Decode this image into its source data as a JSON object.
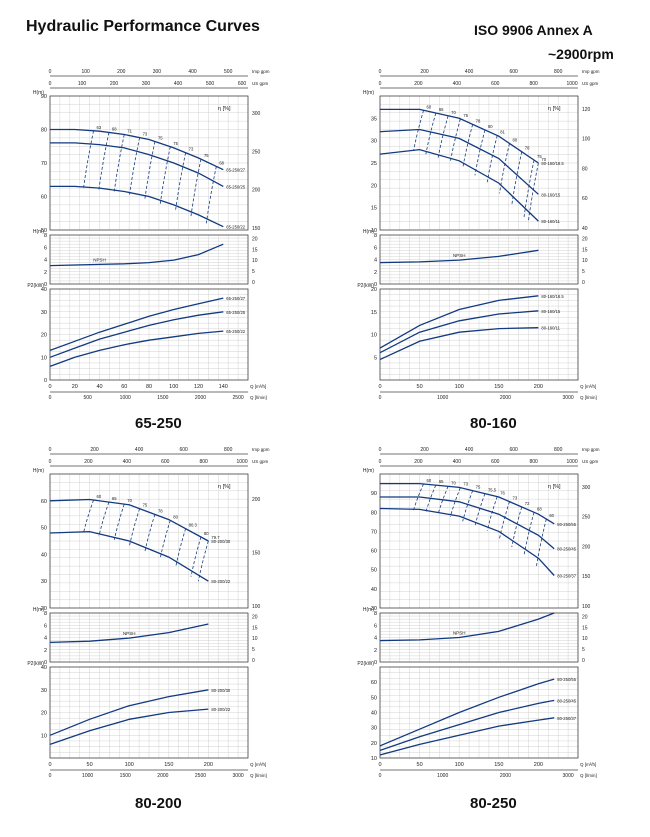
{
  "header": {
    "title": "Hydraulic Performance Curves",
    "standard": "ISO 9906   Annex A",
    "speed": "~2900rpm"
  },
  "colors": {
    "curve": "#123a80",
    "grid": "#c8c8c8",
    "frame": "#444444",
    "text": "#222222"
  },
  "chart_data": [
    {
      "type": "line",
      "model": "65-250",
      "axis_labels": {
        "h": "H(m)",
        "npsh": "H(m)",
        "p": "P2(kW)",
        "q_m3h": "Q [m³/h]",
        "q_lmin": "Q [l/min]",
        "imp": "Imp gpm",
        "us": "US gpm"
      },
      "top_impgpm_ticks": [
        "0",
        "100",
        "200",
        "300",
        "400",
        "500"
      ],
      "top_usgpm_ticks": [
        "0",
        "100",
        "200",
        "300",
        "400",
        "500",
        "600"
      ],
      "head": {
        "ylim": [
          50,
          90
        ],
        "ticks": [
          "50",
          "60",
          "70",
          "80",
          "90"
        ],
        "ft_ticks": [
          "150",
          "200",
          "250",
          "300"
        ],
        "series": [
          {
            "name": "65-250/27",
            "x": [
              0,
              20,
              40,
              60,
              80,
              100,
              120,
              140
            ],
            "y": [
              80,
              80,
              79.5,
              78.5,
              77,
              74.5,
              71.5,
              68
            ]
          },
          {
            "name": "65-250/25",
            "x": [
              0,
              20,
              40,
              60,
              80,
              100,
              120,
              140
            ],
            "y": [
              76,
              76,
              75.5,
              74.5,
              72.5,
              70,
              67,
              63
            ]
          },
          {
            "name": "65-250/22",
            "x": [
              0,
              20,
              40,
              60,
              80,
              100,
              120,
              140
            ],
            "y": [
              63,
              63,
              62.5,
              61.5,
              60,
              57.5,
              54.5,
              51
            ]
          }
        ],
        "eff_label": "η [%]",
        "eff_values": [
          "63",
          "68",
          "71",
          "73",
          "75",
          "75",
          "73",
          "75",
          "68"
        ]
      },
      "npsh": {
        "ylim": [
          0,
          8
        ],
        "ticks": [
          "0",
          "2",
          "4",
          "6",
          "8"
        ],
        "ft_ticks": [
          "0",
          "5",
          "10",
          "15",
          "20"
        ],
        "label": "NPSH",
        "x": [
          0,
          20,
          40,
          60,
          80,
          100,
          120,
          140
        ],
        "y": [
          3,
          3.1,
          3.2,
          3.3,
          3.5,
          3.9,
          4.8,
          6.5
        ]
      },
      "power": {
        "ylim": [
          0,
          40
        ],
        "ticks": [
          "0",
          "10",
          "20",
          "30",
          "40"
        ],
        "series": [
          {
            "name": "65-250/27",
            "x": [
              0,
              20,
              40,
              60,
              80,
              100,
              120,
              140
            ],
            "y": [
              13,
              17,
              21,
              24.5,
              28,
              31,
              33.5,
              36
            ]
          },
          {
            "name": "65-250/25",
            "x": [
              0,
              20,
              40,
              60,
              80,
              100,
              120,
              140
            ],
            "y": [
              10,
              14,
              18,
              21,
              24,
              26.5,
              28.5,
              30
            ]
          },
          {
            "name": "65-250/22",
            "x": [
              0,
              20,
              40,
              60,
              80,
              100,
              120,
              140
            ],
            "y": [
              6,
              10,
              13,
              15.5,
              17.5,
              19,
              20.5,
              21.5
            ]
          }
        ]
      },
      "xlim": [
        0,
        160
      ],
      "x_ticks": [
        "0",
        "20",
        "40",
        "60",
        "80",
        "100",
        "120",
        "140"
      ],
      "lmin_ticks": [
        "0",
        "500",
        "1000",
        "1500",
        "2000",
        "2500"
      ]
    },
    {
      "type": "line",
      "model": "80-160",
      "axis_labels": {
        "h": "H(m)",
        "npsh": "H(m)",
        "p": "P2(kW)",
        "q_m3h": "Q [m³/h]",
        "q_lmin": "Q [l/min]",
        "imp": "Imp gpm",
        "us": "US gpm"
      },
      "top_impgpm_ticks": [
        "0",
        "200",
        "400",
        "600",
        "800"
      ],
      "top_usgpm_ticks": [
        "0",
        "200",
        "400",
        "600",
        "800",
        "1000"
      ],
      "head": {
        "ylim": [
          10,
          40
        ],
        "ticks": [
          "10",
          "15",
          "20",
          "25",
          "30",
          "35"
        ],
        "ft_ticks": [
          "40",
          "60",
          "80",
          "100",
          "120"
        ],
        "series": [
          {
            "name": "80-160/18.5",
            "x": [
              0,
              50,
              100,
              150,
              200
            ],
            "y": [
              37,
              37,
              35,
              31,
              25
            ]
          },
          {
            "name": "80-160/15",
            "x": [
              0,
              50,
              100,
              150,
              200
            ],
            "y": [
              32,
              32.5,
              30.5,
              26,
              18
            ]
          },
          {
            "name": "80-160/11",
            "x": [
              0,
              50,
              100,
              150,
              200
            ],
            "y": [
              27,
              28,
              25.5,
              20.5,
              12
            ]
          }
        ],
        "eff_label": "η [%]",
        "eff_values": [
          "60",
          "65",
          "70",
          "75",
          "78",
          "80",
          "81",
          "80",
          "78",
          "75",
          "70"
        ]
      },
      "npsh": {
        "ylim": [
          0,
          8
        ],
        "ticks": [
          "0",
          "2",
          "4",
          "6",
          "8"
        ],
        "ft_ticks": [
          "0",
          "5",
          "10",
          "15",
          "20"
        ],
        "label": "NPSH",
        "x": [
          0,
          50,
          100,
          150,
          200
        ],
        "y": [
          3.5,
          3.6,
          3.9,
          4.5,
          5.5
        ]
      },
      "power": {
        "ylim": [
          0,
          20
        ],
        "ticks": [
          "5",
          "10",
          "15",
          "20"
        ],
        "series": [
          {
            "name": "80-160/18.5",
            "x": [
              0,
              50,
              100,
              150,
              200
            ],
            "y": [
              7,
              12,
              15.5,
              17.5,
              18.5
            ]
          },
          {
            "name": "80-160/15",
            "x": [
              0,
              50,
              100,
              150,
              200
            ],
            "y": [
              6,
              10.5,
              13,
              14.5,
              15.2
            ]
          },
          {
            "name": "80-160/11",
            "x": [
              0,
              50,
              100,
              150,
              200
            ],
            "y": [
              4.5,
              8.5,
              10.5,
              11.3,
              11.5
            ]
          }
        ]
      },
      "xlim": [
        0,
        250
      ],
      "x_ticks": [
        "0",
        "50",
        "100",
        "150",
        "200"
      ],
      "lmin_ticks": [
        "0",
        "1000",
        "2000",
        "3000"
      ]
    },
    {
      "type": "line",
      "model": "80-200",
      "axis_labels": {
        "h": "H(m)",
        "npsh": "H(m)",
        "p": "P2(kW)",
        "q_m3h": "Q [m³/h]",
        "q_lmin": "Q [l/min]",
        "imp": "Imp gpm",
        "us": "US gpm"
      },
      "top_impgpm_ticks": [
        "0",
        "200",
        "400",
        "600",
        "800"
      ],
      "top_usgpm_ticks": [
        "0",
        "200",
        "400",
        "600",
        "800",
        "1000"
      ],
      "head": {
        "ylim": [
          20,
          70
        ],
        "ticks": [
          "20",
          "30",
          "40",
          "50",
          "60"
        ],
        "ft_ticks": [
          "100",
          "150",
          "200"
        ],
        "series": [
          {
            "name": "80-200/30",
            "x": [
              0,
              50,
              100,
              150,
              200
            ],
            "y": [
              60,
              60.5,
              58.5,
              53,
              45
            ]
          },
          {
            "name": "80-200/22",
            "x": [
              0,
              50,
              100,
              150,
              200
            ],
            "y": [
              48,
              48.5,
              45,
              39,
              30
            ]
          }
        ],
        "eff_label": "η [%]",
        "eff_values": [
          "60",
          "65",
          "70",
          "75",
          "78",
          "80",
          "80.3",
          "80",
          "79.7"
        ]
      },
      "npsh": {
        "ylim": [
          0,
          8
        ],
        "ticks": [
          "0",
          "2",
          "4",
          "6",
          "8"
        ],
        "ft_ticks": [
          "0",
          "5",
          "10",
          "15",
          "20"
        ],
        "label": "NPSH",
        "x": [
          0,
          50,
          100,
          150,
          200
        ],
        "y": [
          3.2,
          3.4,
          3.9,
          4.8,
          6.2
        ]
      },
      "power": {
        "ylim": [
          0,
          40
        ],
        "ticks": [
          "10",
          "20",
          "30",
          "40"
        ],
        "series": [
          {
            "name": "80-200/30",
            "x": [
              0,
              50,
              100,
              150,
              200
            ],
            "y": [
              10,
              17,
              23,
              27,
              30
            ]
          },
          {
            "name": "80-200/22",
            "x": [
              0,
              50,
              100,
              150,
              200
            ],
            "y": [
              6,
              12,
              17,
              20,
              21.5
            ]
          }
        ]
      },
      "xlim": [
        0,
        250
      ],
      "x_ticks": [
        "0",
        "50",
        "100",
        "150",
        "200"
      ],
      "lmin_ticks": [
        "0",
        "1000",
        "1500",
        "2000",
        "2500",
        "3000"
      ]
    },
    {
      "type": "line",
      "model": "80-250",
      "axis_labels": {
        "h": "H(m)",
        "npsh": "H(m)",
        "p": "P2(kW)",
        "q_m3h": "Q [m³/h]",
        "q_lmin": "Q [l/min]",
        "imp": "Imp gpm",
        "us": "US gpm"
      },
      "top_impgpm_ticks": [
        "0",
        "200",
        "400",
        "600",
        "800"
      ],
      "top_usgpm_ticks": [
        "0",
        "200",
        "400",
        "600",
        "800",
        "1000"
      ],
      "head": {
        "ylim": [
          30,
          100
        ],
        "ticks": [
          "30",
          "40",
          "50",
          "60",
          "70",
          "80",
          "90"
        ],
        "ft_ticks": [
          "100",
          "150",
          "200",
          "250",
          "300"
        ],
        "series": [
          {
            "name": "80-250/55",
            "x": [
              0,
              50,
              100,
              150,
              200,
              220
            ],
            "y": [
              95,
              95,
              93,
              88,
              79,
              74
            ]
          },
          {
            "name": "80-250/45",
            "x": [
              0,
              50,
              100,
              150,
              200,
              220
            ],
            "y": [
              88,
              88,
              85.5,
              79,
              68,
              61
            ]
          },
          {
            "name": "80-250/37",
            "x": [
              0,
              50,
              100,
              150,
              200,
              220
            ],
            "y": [
              82,
              81.5,
              78,
              70,
              56,
              47
            ]
          }
        ],
        "eff_label": "η [%]",
        "eff_values": [
          "60",
          "65",
          "70",
          "73",
          "75",
          "75.5",
          "76",
          "73",
          "72",
          "68",
          "60"
        ]
      },
      "npsh": {
        "ylim": [
          0,
          8
        ],
        "ticks": [
          "0",
          "2",
          "4",
          "6",
          "8"
        ],
        "ft_ticks": [
          "0",
          "5",
          "10",
          "15",
          "20"
        ],
        "label": "NPSH",
        "x": [
          0,
          50,
          100,
          150,
          200,
          220
        ],
        "y": [
          3.5,
          3.6,
          4,
          5,
          7,
          8
        ]
      },
      "power": {
        "ylim": [
          10,
          70
        ],
        "ticks": [
          "10",
          "20",
          "30",
          "40",
          "50",
          "60"
        ],
        "series": [
          {
            "name": "80-250/55",
            "x": [
              0,
              50,
              100,
              150,
              200,
              220
            ],
            "y": [
              18,
              29,
              40,
              50,
              59,
              62
            ]
          },
          {
            "name": "80-250/45",
            "x": [
              0,
              50,
              100,
              150,
              200,
              220
            ],
            "y": [
              15,
              24,
              32,
              40,
              46,
              48
            ]
          },
          {
            "name": "80-250/37",
            "x": [
              0,
              50,
              100,
              150,
              200,
              220
            ],
            "y": [
              12,
              19,
              25,
              31,
              35,
              36.5
            ]
          }
        ]
      },
      "xlim": [
        0,
        250
      ],
      "x_ticks": [
        "0",
        "50",
        "100",
        "150",
        "200"
      ],
      "lmin_ticks": [
        "0",
        "1000",
        "2000",
        "3000"
      ]
    }
  ]
}
